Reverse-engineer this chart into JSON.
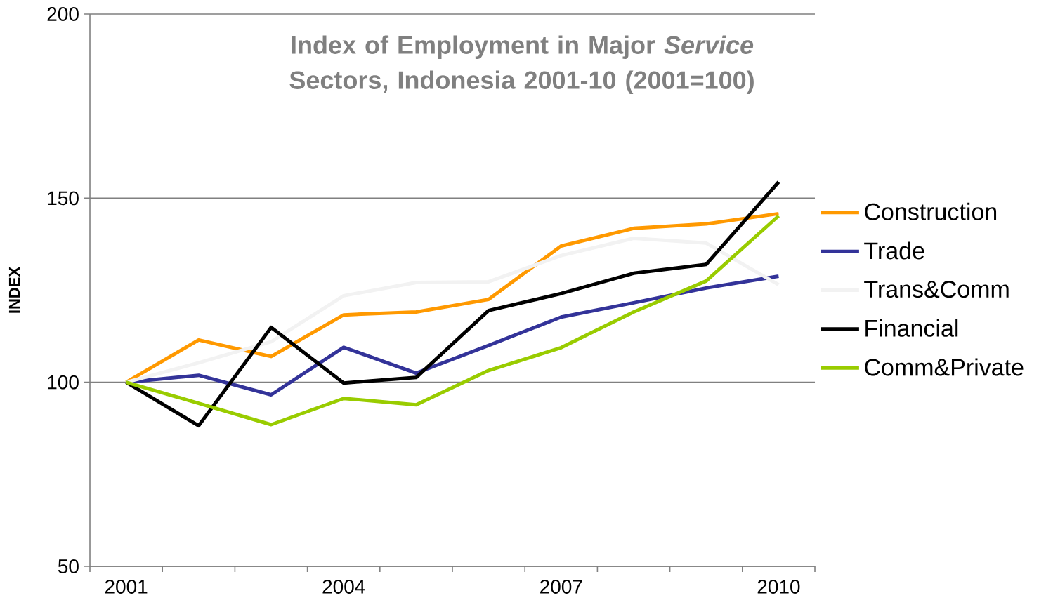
{
  "chart_data": {
    "type": "line",
    "title": "Index of Employment in Major *Service* Sectors, Indonesia 2001-10 (2001=100)",
    "ylabel": "INDEX",
    "categories": [
      "2001",
      null,
      null,
      "2004",
      null,
      null,
      "2007",
      null,
      null,
      "2010"
    ],
    "series": [
      {
        "name": "Construction",
        "color": "#ff9900",
        "values": [
          100,
          111.5,
          107,
          118.3,
          119.1,
          122.5,
          137,
          141.8,
          143,
          145.8
        ]
      },
      {
        "name": "Trade",
        "color": "#333399",
        "values": [
          100,
          101.9,
          96.6,
          109.5,
          102.5,
          110,
          117.7,
          121.6,
          125.6,
          128.8
        ]
      },
      {
        "name": "Trans&Comm",
        "color": "#f2f2f2",
        "values": [
          100,
          105.3,
          111,
          123.5,
          127.1,
          127.3,
          134.4,
          139.1,
          137.8,
          126.5
        ]
      },
      {
        "name": "Financial",
        "color": "#000000",
        "values": [
          100,
          88.2,
          114.9,
          99.8,
          101.3,
          119.5,
          124.1,
          129.6,
          132,
          154.4
        ]
      },
      {
        "name": "Comm&Private",
        "color": "#99cc00",
        "values": [
          100,
          94.3,
          88.5,
          95.6,
          93.9,
          103.2,
          109.4,
          119.1,
          127.5,
          145.2
        ]
      }
    ],
    "ylim": [
      50,
      200
    ],
    "yticks": [
      50,
      100,
      150,
      200
    ],
    "grid": "y",
    "legend": "right"
  }
}
